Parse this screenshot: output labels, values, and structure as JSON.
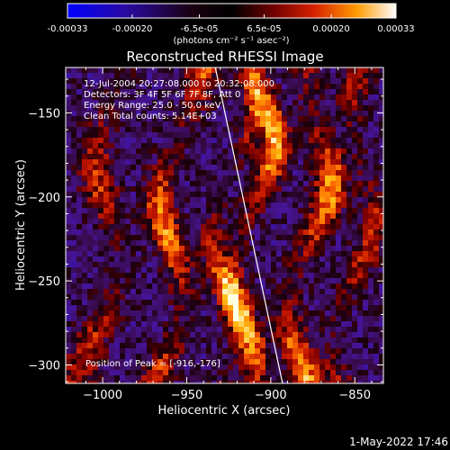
{
  "chart_data": {
    "type": "heatmap",
    "title": "Reconstructed RHESSI Image",
    "xlabel": "Heliocentric X (arcsec)",
    "ylabel": "Heliocentric Y (arcsec)",
    "xlim": [
      -1022,
      -833
    ],
    "ylim": [
      -311,
      -123
    ],
    "x_ticks": [
      -1000,
      -950,
      -900,
      -850
    ],
    "x_tick_labels": [
      "−1000",
      "−950",
      "−900",
      "−850"
    ],
    "y_ticks": [
      -150,
      -200,
      -250,
      -300
    ],
    "y_tick_labels": [
      "−150",
      "−200",
      "−250",
      "−300"
    ],
    "colorbar": {
      "ticks": [
        -0.00033,
        -0.0002,
        -6.5e-05,
        6.5e-05,
        0.0002,
        0.00033
      ],
      "tick_labels": [
        "-0.00033",
        "-0.00020",
        "-6.5e-05",
        "6.5e-05",
        "0.00020",
        "0.00033"
      ],
      "unit_label": "(photons cm⁻² s⁻¹ asec⁻²)",
      "range": [
        -0.00033,
        0.00033
      ],
      "colors": [
        "#1a1aff",
        "#3a0a7a",
        "#000000",
        "#b01000",
        "#ff7a00",
        "#ffffff"
      ]
    },
    "annotations": [
      "12-Jul-2004 20:27:08.000 to 20:32:08.000",
      "Detectors: 3F 4F 5F 6F 7F 8F, Att 0",
      "Energy Range: 25.0 - 50.0 keV",
      "Clean    Total counts: 5.14E+03"
    ],
    "peak_label": "Position of Peak = [-916,-176]",
    "limb_line": {
      "x": [
        -933,
        -893
      ],
      "y": [
        -123,
        -311
      ]
    },
    "peak": [
      -916,
      -176
    ]
  },
  "footer": {
    "timestamp": "1-May-2022 17:46"
  }
}
